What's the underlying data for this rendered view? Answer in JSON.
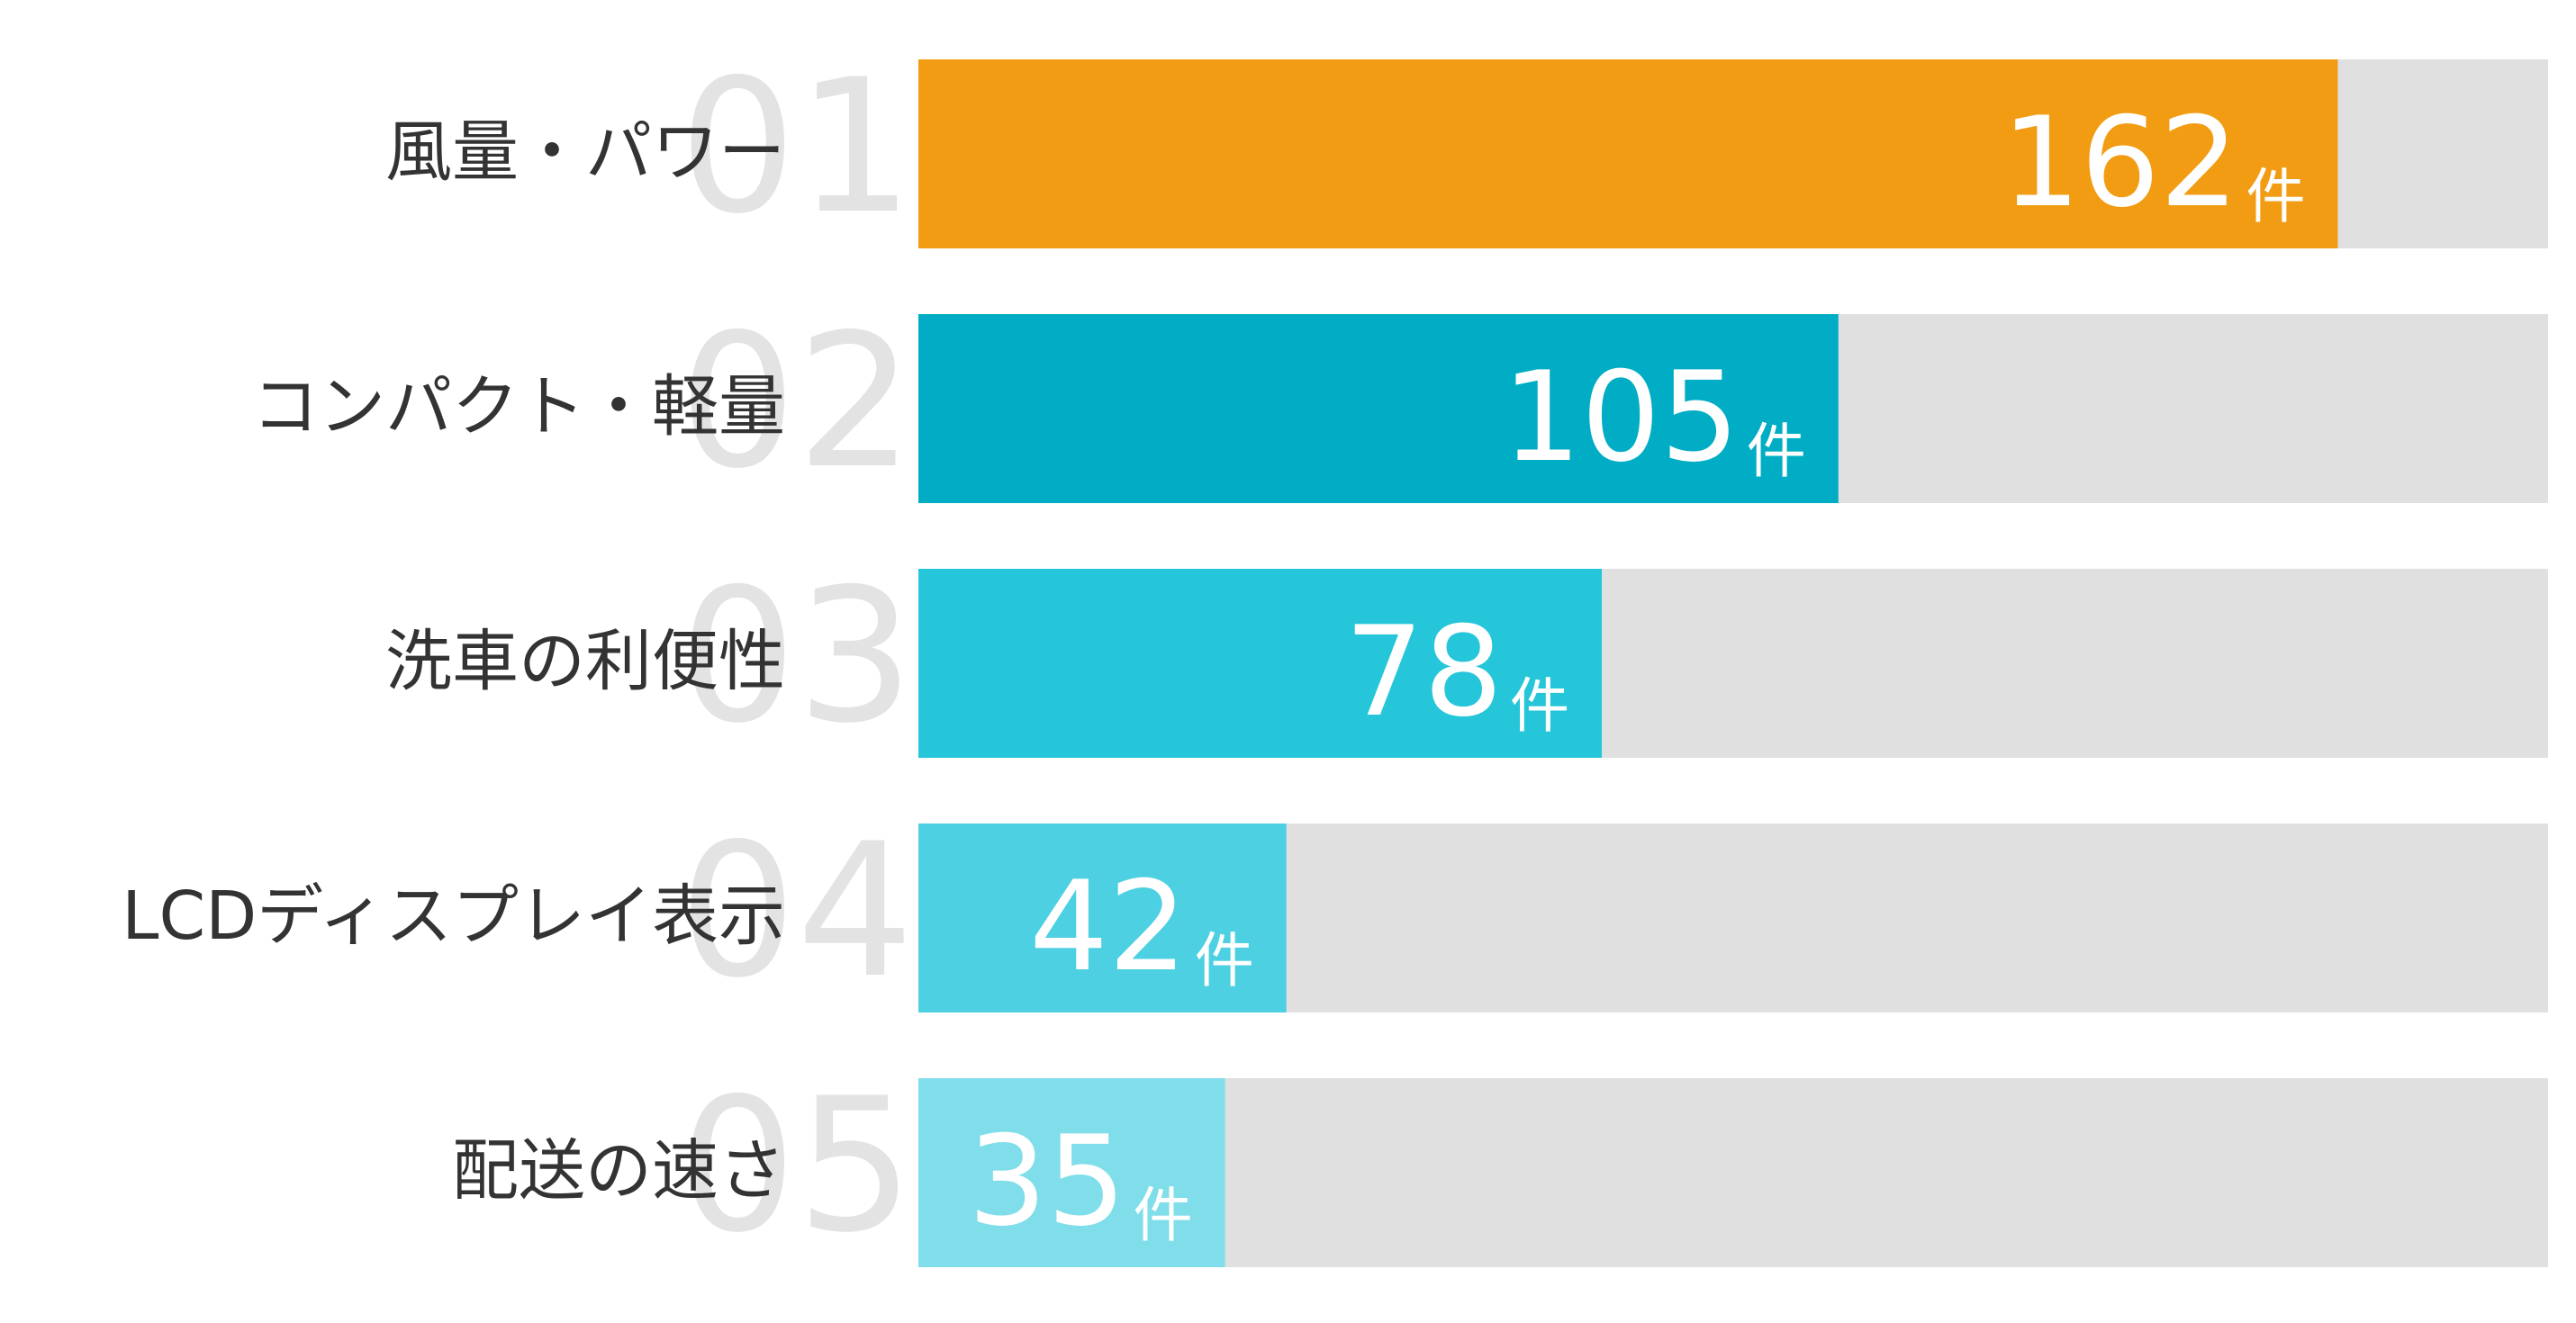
{
  "chart_data": {
    "type": "bar",
    "orientation": "horizontal",
    "ranks": [
      "01",
      "02",
      "03",
      "04",
      "05"
    ],
    "categories": [
      "風量・パワー",
      "コンパクト・軽量",
      "洗車の利便性",
      "LCDディスプレイ表示",
      "配送の速さ"
    ],
    "values": [
      162,
      105,
      78,
      42,
      35
    ],
    "unit": "件",
    "colors": [
      "#f29c14",
      "#00adc4",
      "#26c6da",
      "#4dd0e1",
      "#80deea"
    ],
    "track_color": "#e0e0e0",
    "xlim": [
      0,
      186
    ]
  }
}
